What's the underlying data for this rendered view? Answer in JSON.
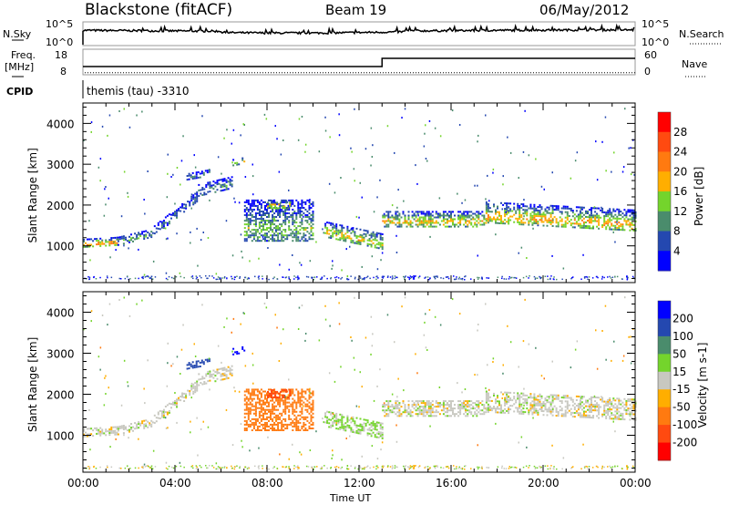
{
  "header": {
    "station": "Blackstone (fitACF)",
    "beam": "Beam 19",
    "date": "06/May/2012"
  },
  "noise_panel": {
    "left_label": "N.Sky",
    "right_label": "N.Search",
    "ticks": [
      "10^5",
      "10^0"
    ],
    "right_ticks": [
      "10^5",
      "10^0"
    ]
  },
  "freq_panel": {
    "left_label_1": "Freq.",
    "left_label_2": "[MHz]",
    "ticks": [
      "18",
      "8"
    ],
    "right_ticks": [
      "60",
      "0"
    ],
    "right_label": "Nave",
    "freq_series": [
      [
        0,
        10.2
      ],
      [
        13,
        10.2
      ],
      [
        13,
        15.2
      ],
      [
        24,
        15.2
      ]
    ],
    "nave_value": 0.5
  },
  "cpid": {
    "label": "CPID",
    "value": "themis (tau) -3310"
  },
  "chart_data": [
    {
      "type": "heatmap",
      "name": "power",
      "ylabel": "Slant Range [km]",
      "xlabel": "Time UT",
      "xlim": [
        0,
        24
      ],
      "ylim": [
        100,
        4500
      ],
      "y_ticks": [
        "1000",
        "2000",
        "3000",
        "4000"
      ],
      "y_tick_values": [
        1000,
        2000,
        3000,
        4000
      ],
      "colorbar": {
        "label": "Power [dB]",
        "ticks": [
          "28",
          "24",
          "20",
          "16",
          "12",
          "8",
          "4"
        ],
        "colors": [
          "#ff0000",
          "#ff4a10",
          "#ff7a10",
          "#ffae00",
          "#74d42c",
          "#4a8c6c",
          "#2448b0",
          "#0000ff"
        ]
      }
    },
    {
      "type": "heatmap",
      "name": "velocity",
      "ylabel": "Slant Range [km]",
      "xlabel": "Time UT",
      "xlim": [
        0,
        24
      ],
      "ylim": [
        100,
        4500
      ],
      "y_ticks": [
        "1000",
        "2000",
        "3000",
        "4000"
      ],
      "y_tick_values": [
        1000,
        2000,
        3000,
        4000
      ],
      "colorbar": {
        "label": "Velocity [m s-1]",
        "ticks": [
          "200",
          "100",
          "50",
          "15",
          "-15",
          "-50",
          "-100",
          "-200"
        ],
        "colors": [
          "#0000ff",
          "#2448b0",
          "#4a8c6c",
          "#74d42c",
          "#c8c8c0",
          "#ffae00",
          "#ff7a10",
          "#ff4a10",
          "#ff0000"
        ]
      }
    }
  ],
  "x_axis": {
    "label": "Time UT",
    "ticks": [
      "00:00",
      "04:00",
      "08:00",
      "12:00",
      "16:00",
      "20:00",
      "00:00"
    ]
  },
  "echo_regions": [
    {
      "t": [
        0,
        1.5
      ],
      "r0": [
        950,
        1000
      ],
      "w": 200,
      "p": 22,
      "v": 0
    },
    {
      "t": [
        1.5,
        3
      ],
      "r0": [
        1000,
        1200
      ],
      "w": 220,
      "p": 12,
      "v": 0
    },
    {
      "t": [
        3,
        5
      ],
      "r0": [
        1200,
        2100
      ],
      "w": 250,
      "p": 8,
      "v": 0
    },
    {
      "t": [
        5,
        6.5
      ],
      "r0": [
        2200,
        2400
      ],
      "w": 300,
      "p": 10,
      "v": 0
    },
    {
      "t": [
        4.5,
        5.5
      ],
      "r0": [
        2600,
        2700
      ],
      "w": 150,
      "p": 9,
      "v": 150
    },
    {
      "t": [
        6.5,
        7
      ],
      "r0": [
        2950,
        3000
      ],
      "w": 150,
      "p": 16,
      "v": 220
    },
    {
      "t": [
        7,
        10
      ],
      "r0": [
        1100,
        1100
      ],
      "w": 1000,
      "p": 13,
      "v": -70
    },
    {
      "t": [
        8,
        9
      ],
      "r0": [
        1900,
        1900
      ],
      "w": 200,
      "p": 20,
      "v": -150
    },
    {
      "t": [
        10.5,
        13
      ],
      "r0": [
        1200,
        900
      ],
      "w": 400,
      "p": 18,
      "v": 20
    },
    {
      "t": [
        13,
        17.5
      ],
      "r0": [
        1450,
        1450
      ],
      "w": 400,
      "p": 18,
      "v": 0
    },
    {
      "t": [
        17.5,
        24
      ],
      "r0": [
        1550,
        1350
      ],
      "w": 500,
      "p": 20,
      "v": 0
    }
  ]
}
